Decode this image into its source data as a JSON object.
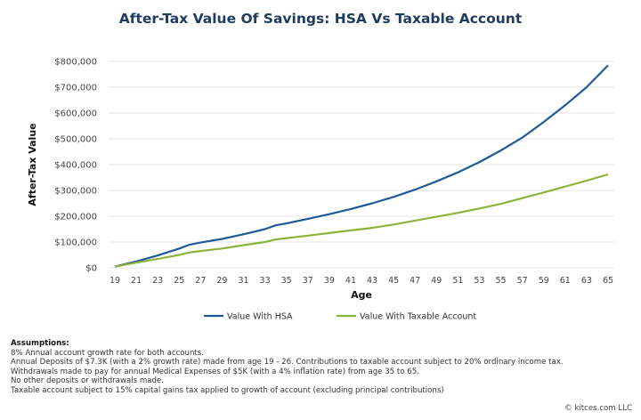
{
  "chart_data": {
    "type": "line",
    "title": "After-Tax Value Of Savings: HSA Vs Taxable Account",
    "xlabel": "Age",
    "ylabel": "After-Tax Value",
    "xlim": [
      19,
      65
    ],
    "ylim": [
      0,
      800000
    ],
    "x_ticks": [
      19,
      21,
      23,
      25,
      27,
      29,
      31,
      33,
      35,
      37,
      39,
      41,
      43,
      45,
      47,
      49,
      51,
      53,
      55,
      57,
      59,
      61,
      63,
      65
    ],
    "y_ticks": [
      0,
      100000,
      200000,
      300000,
      400000,
      500000,
      600000,
      700000,
      800000
    ],
    "y_tick_labels": [
      "$0",
      "$100,000",
      "$200,000",
      "$300,000",
      "$400,000",
      "$500,000",
      "$600,000",
      "$700,000",
      "$800,000"
    ],
    "grid": "horizontal",
    "legend_position": "bottom",
    "x": [
      19,
      21,
      23,
      25,
      26,
      27,
      29,
      31,
      33,
      34,
      35,
      37,
      39,
      41,
      43,
      45,
      47,
      49,
      51,
      53,
      55,
      57,
      59,
      61,
      63,
      65
    ],
    "series": [
      {
        "name": "Value With HSA",
        "color": "#1f5a96",
        "values": [
          5000,
          25000,
          48000,
          75000,
          90000,
          98000,
          112000,
          130000,
          150000,
          165000,
          172000,
          190000,
          208000,
          228000,
          250000,
          275000,
          303000,
          335000,
          370000,
          410000,
          455000,
          505000,
          565000,
          630000,
          700000,
          785000
        ]
      },
      {
        "name": "Value With Taxable Account",
        "color": "#8db33a",
        "values": [
          5000,
          20000,
          35000,
          50000,
          60000,
          65000,
          75000,
          88000,
          100000,
          110000,
          115000,
          125000,
          135000,
          145000,
          155000,
          168000,
          183000,
          198000,
          213000,
          230000,
          248000,
          270000,
          292000,
          315000,
          338000,
          362000
        ]
      }
    ]
  },
  "assumptions": {
    "heading": "Assumptions:",
    "lines": [
      "8% Annual account growth rate for both accounts.",
      "Annual Deposits of $7.3K (with a 2% growth rate) made from age 19 - 26. Contributions to taxable account subject to 20% ordinary income tax.",
      "Withdrawals made to pay for annual Medical Expenses of $5K (with a 4% inflation rate) from age 35 to 65.",
      "No other deposits or withdrawals made.",
      "Taxable account subject to 15% capital gains tax applied to growth of account (excluding principal contributions)"
    ]
  },
  "copyright": "© kitces.com LLC"
}
